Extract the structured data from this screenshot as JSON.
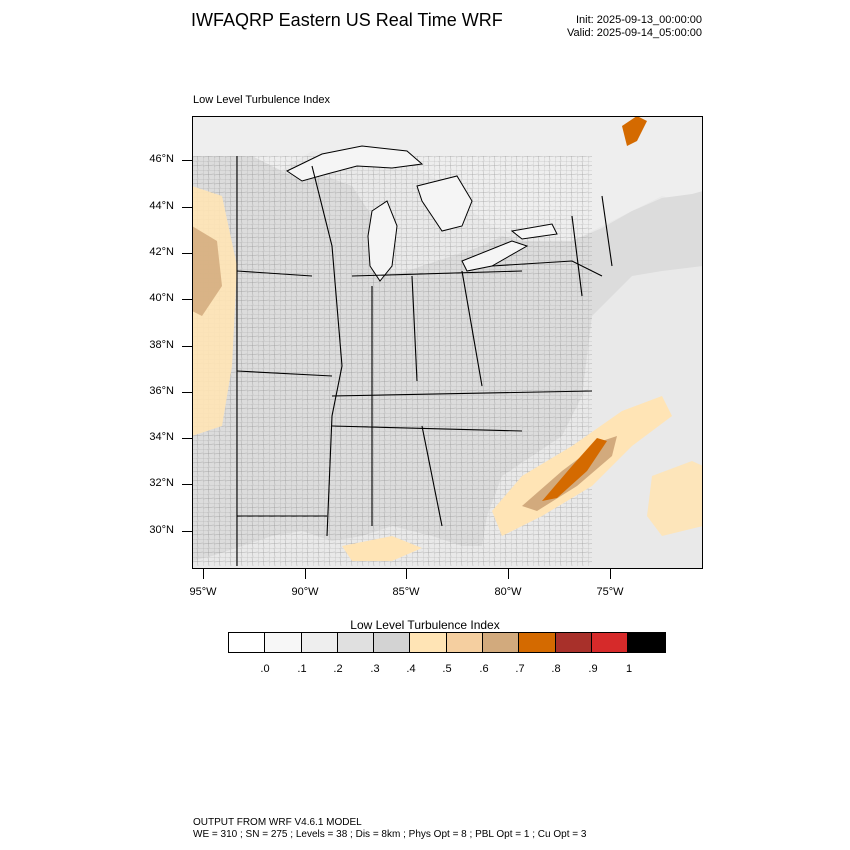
{
  "header": {
    "title": "IWFAQRP Eastern US Real Time WRF",
    "init": "Init: 2025-09-13_00:00:00",
    "valid": "Valid: 2025-09-14_05:00:00"
  },
  "map": {
    "subtitle": "Low Level Turbulence Index",
    "lat_labels": [
      "46°N",
      "44°N",
      "42°N",
      "40°N",
      "38°N",
      "36°N",
      "34°N",
      "32°N",
      "30°N"
    ],
    "lon_labels": [
      "95°W",
      "90°W",
      "85°W",
      "80°W",
      "75°W"
    ],
    "colors": {
      "land": "#dcdcdc",
      "water": "#f5f5f5",
      "ocean": "#e6e6e6",
      "border": "#000000"
    }
  },
  "colorbar": {
    "title": "Low Level Turbulence Index",
    "levels": [
      ".0",
      ".1",
      ".2",
      ".3",
      ".4",
      ".5",
      ".6",
      ".7",
      ".8",
      ".9",
      "1"
    ],
    "colors": [
      "#ffffff",
      "#f7f7f7",
      "#eeeeee",
      "#e0e0e0",
      "#d3d3d3",
      "#ffe4b5",
      "#f5cfa0",
      "#d2aa7d",
      "#d46a00",
      "#a8302a",
      "#d62a2a",
      "#000000"
    ]
  },
  "footer": {
    "line1": "OUTPUT FROM WRF V4.6.1 MODEL",
    "line2": "WE = 310 ; SN = 275 ; Levels = 38 ; Dis = 8km ; Phys Opt = 8 ; PBL Opt = 1 ; Cu Opt = 3"
  }
}
